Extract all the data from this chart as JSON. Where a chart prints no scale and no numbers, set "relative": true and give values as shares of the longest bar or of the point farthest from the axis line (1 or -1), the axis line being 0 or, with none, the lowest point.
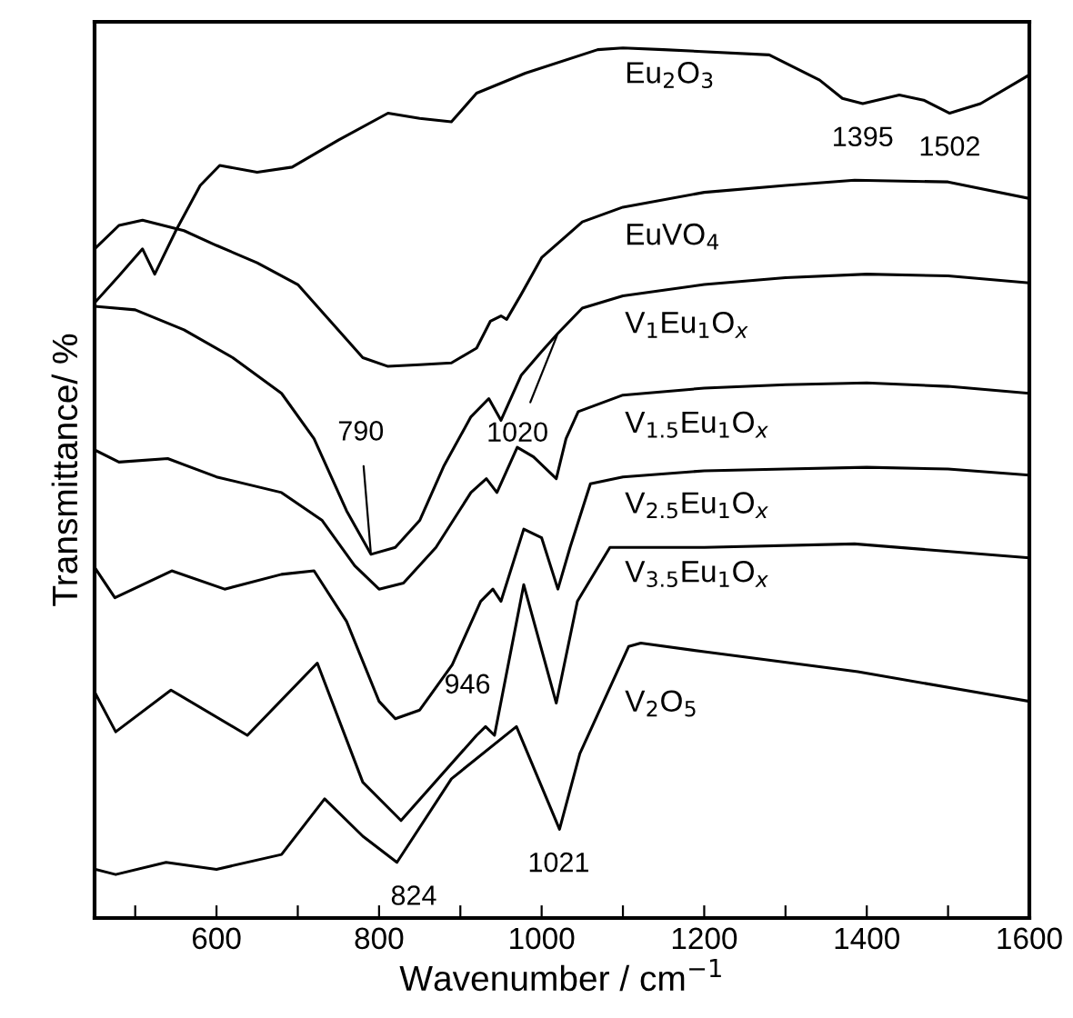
{
  "chart_data": {
    "type": "line",
    "relative": true,
    "xlabel": "Wavenumber / cm$^{−1}$",
    "ylabel": "Transmittance/ %",
    "xlim": [
      450,
      1600
    ],
    "xticks": [
      {
        "value": 500,
        "label": null
      },
      600,
      {
        "value": 700,
        "label": null
      },
      800,
      {
        "value": 900,
        "label": null
      },
      1000,
      {
        "value": 1100,
        "label": null
      },
      1200,
      {
        "value": 1300,
        "label": null
      },
      1400,
      {
        "value": 1500,
        "label": null
      },
      1600
    ],
    "legend": false,
    "grid": false,
    "line_style": "solid",
    "marker": "none",
    "series": [
      {
        "name": "Eu$_{2}$O$_{3}$",
        "color": "#000000",
        "x": [
          450,
          480,
          509,
          524,
          550,
          580,
          604,
          650,
          693,
          750,
          811,
          850,
          889,
          920,
          980,
          1069,
          1100,
          1150,
          1280,
          1342,
          1370,
          1395,
          1440,
          1470,
          1502,
          1540,
          1600
        ],
        "values": [
          0.707,
          0.738,
          0.769,
          0.74,
          0.79,
          0.842,
          0.865,
          0.857,
          0.863,
          0.894,
          0.925,
          0.919,
          0.915,
          0.948,
          0.971,
          0.998,
          1.0,
          0.998,
          0.992,
          0.963,
          0.942,
          0.936,
          0.946,
          0.94,
          0.925,
          0.936,
          0.969
        ]
      },
      {
        "name": "EuVO$_{4}$",
        "color": "#000000",
        "x": [
          450,
          480,
          509,
          560,
          600,
          650,
          700,
          740,
          780,
          811,
          850,
          889,
          920,
          937,
          950,
          957,
          975,
          1000,
          1050,
          1100,
          1200,
          1300,
          1385,
          1500,
          1600
        ],
        "values": [
          0.769,
          0.796,
          0.802,
          0.79,
          0.773,
          0.753,
          0.728,
          0.686,
          0.644,
          0.634,
          0.636,
          0.638,
          0.655,
          0.686,
          0.692,
          0.688,
          0.717,
          0.759,
          0.8,
          0.817,
          0.834,
          0.842,
          0.848,
          0.846,
          0.827
        ]
      },
      {
        "name": "V$_{1}$Eu$_{1}$O$_{x}$",
        "color": "#000000",
        "x": [
          450,
          500,
          560,
          620,
          680,
          720,
          760,
          790,
          820,
          850,
          880,
          913,
          935,
          950,
          975,
          1000,
          1020,
          1050,
          1100,
          1200,
          1300,
          1400,
          1500,
          1600
        ],
        "values": [
          0.703,
          0.699,
          0.676,
          0.644,
          0.603,
          0.551,
          0.468,
          0.418,
          0.426,
          0.457,
          0.52,
          0.576,
          0.597,
          0.572,
          0.624,
          0.651,
          0.672,
          0.701,
          0.715,
          0.728,
          0.736,
          0.74,
          0.738,
          0.73
        ]
      },
      {
        "name": "V$_{1.5}$Eu$_{1}$O$_{x}$",
        "color": "#000000",
        "x": [
          450,
          480,
          540,
          600,
          680,
          730,
          770,
          800,
          830,
          870,
          913,
          932,
          945,
          970,
          990,
          1018,
          1030,
          1045,
          1100,
          1200,
          1300,
          1400,
          1500,
          1600
        ],
        "values": [
          0.538,
          0.524,
          0.528,
          0.507,
          0.489,
          0.457,
          0.405,
          0.378,
          0.385,
          0.426,
          0.489,
          0.505,
          0.489,
          0.541,
          0.53,
          0.505,
          0.551,
          0.582,
          0.601,
          0.609,
          0.613,
          0.615,
          0.611,
          0.603
        ]
      },
      {
        "name": "V$_{2.5}$Eu$_{1}$O$_{x}$",
        "color": "#000000",
        "x": [
          450,
          475,
          545,
          610,
          680,
          720,
          760,
          800,
          820,
          850,
          890,
          925,
          940,
          950,
          978,
          1000,
          1020,
          1035,
          1060,
          1100,
          1200,
          1300,
          1400,
          1500,
          1600
        ],
        "values": [
          0.403,
          0.368,
          0.399,
          0.378,
          0.395,
          0.399,
          0.341,
          0.249,
          0.229,
          0.239,
          0.291,
          0.364,
          0.378,
          0.364,
          0.447,
          0.437,
          0.378,
          0.426,
          0.499,
          0.507,
          0.514,
          0.516,
          0.518,
          0.516,
          0.509
        ]
      },
      {
        "name": "V$_{3.5}$Eu$_{1}$O$_{x}$",
        "color": "#000000",
        "x": [
          451,
          476,
          544,
          638,
          724,
          780,
          827,
          920,
          931,
          942,
          978,
          1018,
          1044,
          1084,
          1200,
          1385,
          1600
        ],
        "values": [
          0.258,
          0.214,
          0.262,
          0.21,
          0.293,
          0.156,
          0.112,
          0.21,
          0.22,
          0.21,
          0.383,
          0.247,
          0.364,
          0.426,
          0.426,
          0.43,
          0.414
        ]
      },
      {
        "name": "V$_{2}$O$_{5}$",
        "color": "#000000",
        "x": [
          451,
          476,
          538,
          600,
          680,
          733,
          780,
          822,
          889,
          969,
          1022,
          1047,
          1107,
          1122,
          1200,
          1389,
          1600
        ],
        "values": [
          0.056,
          0.05,
          0.064,
          0.056,
          0.073,
          0.137,
          0.094,
          0.064,
          0.16,
          0.22,
          0.102,
          0.189,
          0.312,
          0.316,
          0.306,
          0.283,
          0.249
        ]
      }
    ],
    "annotations": [
      {
        "text": "1395",
        "x": 1395,
        "y": 0.936
      },
      {
        "text": "1502",
        "x": 1502,
        "y": 0.925
      },
      {
        "text": "790",
        "x": 790,
        "y": 0.418
      },
      {
        "text": "1020",
        "x": 1020,
        "y": 0.672
      },
      {
        "text": "946",
        "x": 946,
        "y": 0.22
      },
      {
        "text": "1021",
        "x": 1021,
        "y": 0.102
      },
      {
        "text": "824",
        "x": 824,
        "y": 0.064
      }
    ]
  }
}
